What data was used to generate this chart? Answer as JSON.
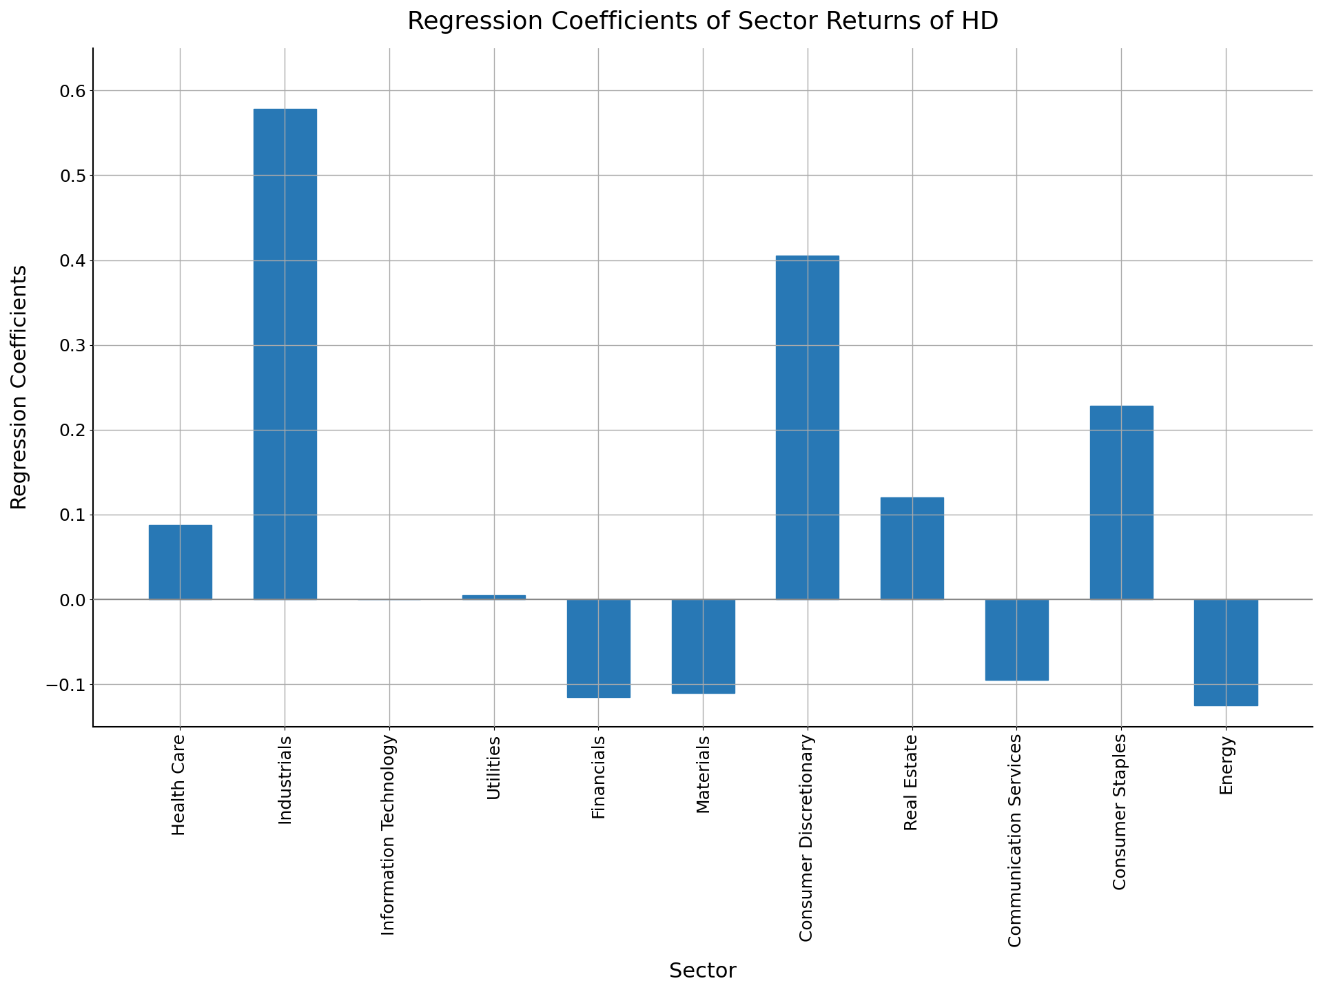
{
  "title": "Regression Coefficients of Sector Returns of HD",
  "xlabel": "Sector",
  "ylabel": "Regression Coefficients",
  "categories": [
    "Health Care",
    "Industrials",
    "Information Technology",
    "Utilities",
    "Financials",
    "Materials",
    "Consumer Discretionary",
    "Real Estate",
    "Communication Services",
    "Consumer Staples",
    "Energy"
  ],
  "values": [
    0.088,
    0.578,
    0.0,
    0.005,
    -0.115,
    -0.11,
    0.405,
    0.12,
    -0.095,
    0.228,
    -0.125
  ],
  "bar_color": "#2878b5",
  "ylim": [
    -0.15,
    0.65
  ],
  "yticks": [
    -0.1,
    0.0,
    0.1,
    0.2,
    0.3,
    0.4,
    0.5,
    0.6
  ],
  "title_fontsize": 26,
  "label_fontsize": 22,
  "tick_fontsize": 18,
  "grid_color": "#aaaaaa",
  "grid_linewidth": 1.0,
  "background_color": "#ffffff"
}
